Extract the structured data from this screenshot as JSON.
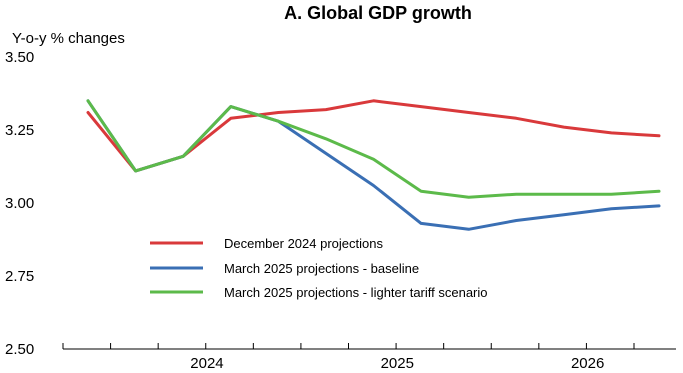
{
  "chart_data": {
    "type": "line",
    "title": "A. Global GDP growth",
    "ylabel": "Y-o-y % changes",
    "xlabel": "",
    "ylim": [
      2.5,
      3.5
    ],
    "yticks": [
      "3.50",
      "3.25",
      "3.00",
      "2.75",
      "2.50"
    ],
    "ytick_values": [
      3.5,
      3.25,
      3.0,
      2.75,
      2.5
    ],
    "xticks": [
      "2024",
      "2025",
      "2026"
    ],
    "x": [
      "2023Q4",
      "2024Q1",
      "2024Q2",
      "2024Q3",
      "2024Q4",
      "2025Q1",
      "2025Q2",
      "2025Q3",
      "2025Q4",
      "2026Q1",
      "2026Q2",
      "2026Q3",
      "2026Q4"
    ],
    "legend_position": "lower-left",
    "grid": false,
    "series": [
      {
        "name": "December 2024 projections",
        "color": "#d9393b",
        "values": [
          3.31,
          3.11,
          3.16,
          3.29,
          3.31,
          3.32,
          3.35,
          3.33,
          3.31,
          3.29,
          3.26,
          3.24,
          3.23
        ]
      },
      {
        "name": "March 2025 projections - baseline",
        "color": "#3a6fb4",
        "values": [
          3.35,
          3.11,
          3.16,
          3.33,
          3.28,
          3.17,
          3.06,
          2.93,
          2.91,
          2.94,
          2.96,
          2.98,
          2.99
        ]
      },
      {
        "name": "March 2025 projections - lighter tariff scenario",
        "color": "#5cba4a",
        "values": [
          3.35,
          3.11,
          3.16,
          3.33,
          3.28,
          3.22,
          3.15,
          3.04,
          3.02,
          3.03,
          3.03,
          3.03,
          3.04
        ]
      }
    ]
  }
}
